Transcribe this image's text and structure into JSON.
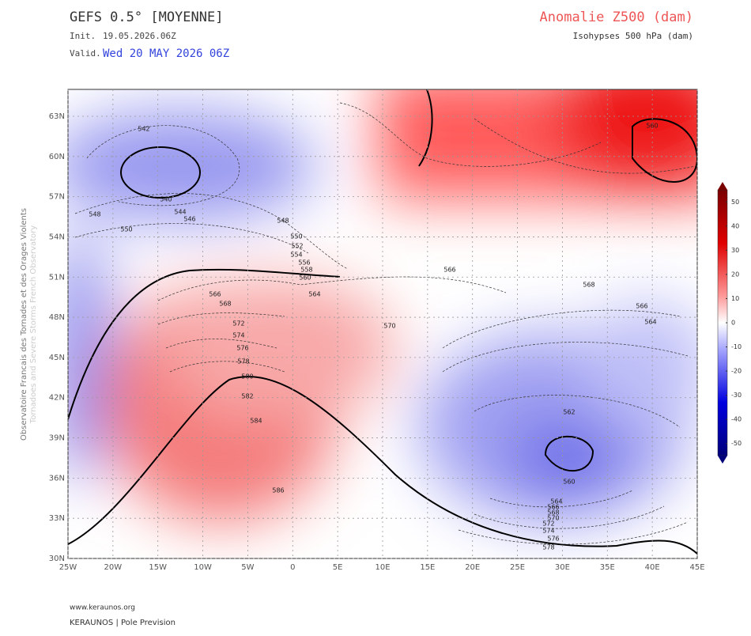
{
  "header": {
    "title": "GEFS 0.5° [MOYENNE]",
    "init_label": "Init.",
    "init_value": "19.05.2026.06Z",
    "valid_label": "Valid.",
    "valid_value": "Wed 20 MAY 2026 06Z",
    "field_title": "Anomalie Z500 (dam)",
    "contour_title": "Isohypses 500 hPa (dam)"
  },
  "side_text": {
    "primary": "Observatoire Francais des Tornades et des Orages Violents",
    "secondary": "Tornadoes and Severe Storms French Observatory"
  },
  "axes": {
    "lon_ticks": [
      {
        "value": -25,
        "label": "25W"
      },
      {
        "value": -20,
        "label": "20W"
      },
      {
        "value": -15,
        "label": "15W"
      },
      {
        "value": -10,
        "label": "10W"
      },
      {
        "value": -5,
        "label": "5W"
      },
      0,
      {
        "value": 5,
        "label": "5E"
      },
      {
        "value": 10,
        "label": "10E"
      },
      {
        "value": 15,
        "label": "15E"
      },
      {
        "value": 20,
        "label": "20E"
      },
      {
        "value": 25,
        "label": "25E"
      },
      {
        "value": 30,
        "label": "30E"
      },
      {
        "value": 35,
        "label": "35E"
      },
      {
        "value": 40,
        "label": "40E"
      },
      {
        "value": 45,
        "label": "45E"
      }
    ],
    "lat_ticks": [
      {
        "value": 30,
        "label": "30N"
      },
      {
        "value": 33,
        "label": "33N"
      },
      {
        "value": 36,
        "label": "36N"
      },
      {
        "value": 39,
        "label": "39N"
      },
      {
        "value": 42,
        "label": "42N"
      },
      {
        "value": 45,
        "label": "45N"
      },
      {
        "value": 48,
        "label": "48N"
      },
      {
        "value": 51,
        "label": "51N"
      },
      {
        "value": 54,
        "label": "54N"
      },
      {
        "value": 57,
        "label": "57N"
      },
      {
        "value": 60,
        "label": "60N"
      },
      {
        "value": 63,
        "label": "63N"
      }
    ]
  },
  "colorbar": {
    "lim": [
      -55,
      55
    ],
    "ticks": [
      50,
      40,
      30,
      20,
      10,
      0,
      -10,
      -20,
      -30,
      -40,
      -50
    ]
  },
  "contour_labels": [
    "542",
    "540",
    "544",
    "546",
    "548",
    "550",
    "548",
    "550",
    "552",
    "554",
    "556",
    "558",
    "560",
    "564",
    "566",
    "568",
    "572",
    "574",
    "576",
    "578",
    "580",
    "582",
    "584",
    "586",
    "566",
    "568",
    "566",
    "564",
    "570",
    "562",
    "560",
    "564",
    "566",
    "568",
    "570",
    "572",
    "574",
    "576",
    "578",
    "560"
  ],
  "footer": {
    "url": "www.keraunos.org",
    "brand": "KERAUNOS | Pole Prevision"
  }
}
